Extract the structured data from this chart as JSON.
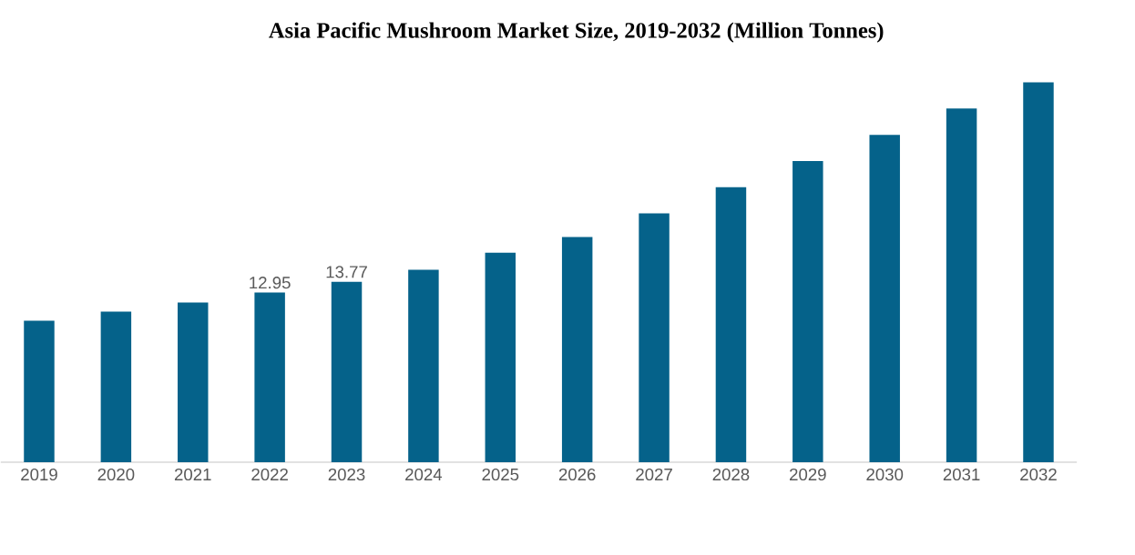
{
  "chart_data": {
    "type": "bar",
    "title": "Asia Pacific Mushroom Market Size, 2019-2032 (Million Tonnes)",
    "categories": [
      "2019",
      "2020",
      "2021",
      "2022",
      "2023",
      "2024",
      "2025",
      "2026",
      "2027",
      "2028",
      "2029",
      "2030",
      "2031",
      "2032"
    ],
    "values": [
      10.8,
      11.5,
      12.2,
      12.95,
      13.77,
      14.7,
      16.0,
      17.2,
      19.0,
      21.0,
      23.0,
      25.0,
      27.0,
      29.0
    ],
    "value_labels": [
      null,
      null,
      null,
      "12.95",
      "13.77",
      null,
      null,
      null,
      null,
      null,
      null,
      null,
      null,
      null
    ],
    "color": "#05628a"
  }
}
